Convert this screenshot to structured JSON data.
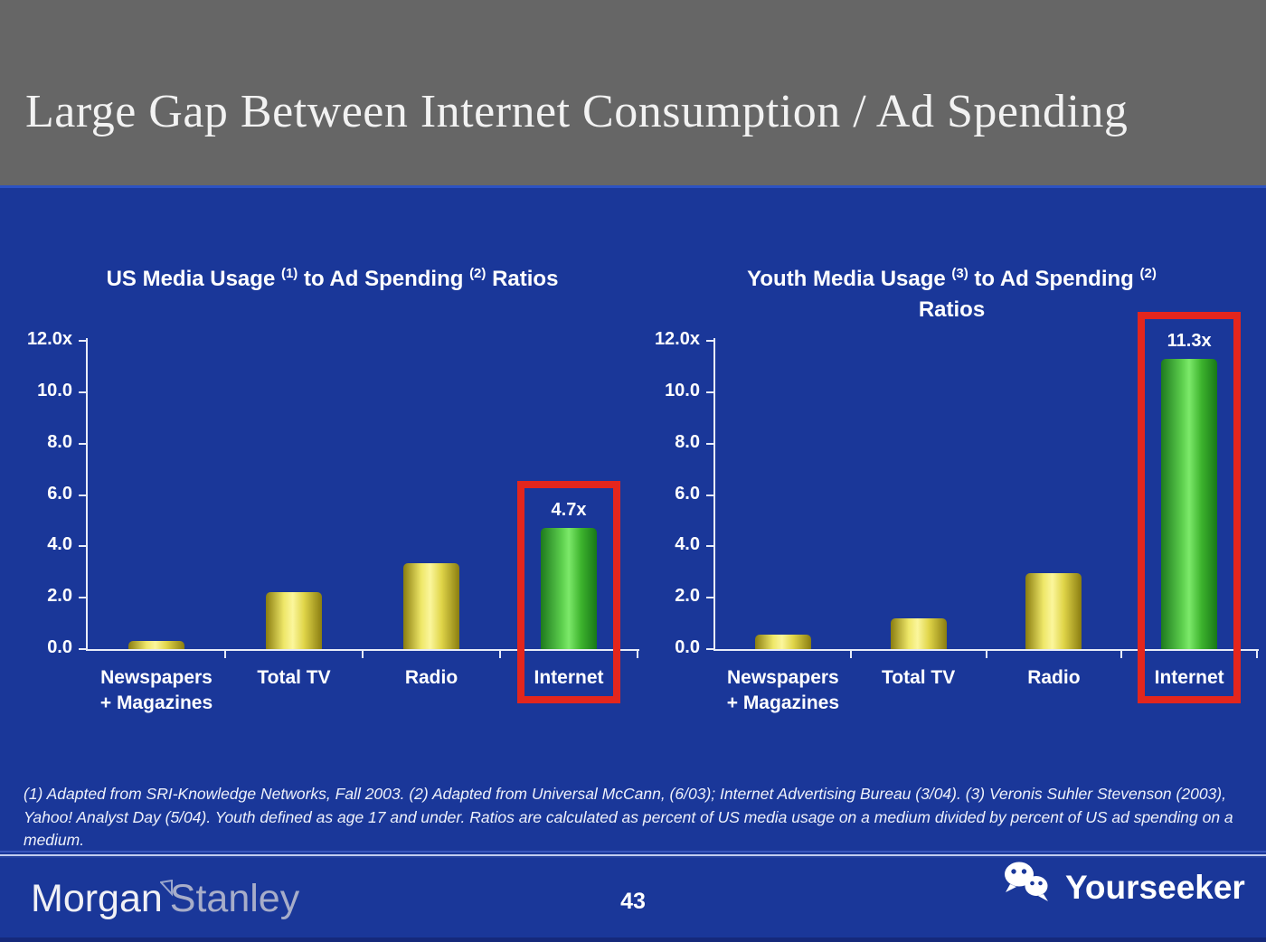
{
  "header": {
    "title": "Large Gap Between Internet Consumption / Ad Spending"
  },
  "footnote": {
    "text": "(1) Adapted from SRI-Knowledge Networks, Fall 2003.  (2) Adapted from Universal McCann, (6/03); Internet Advertising Bureau (3/04). (3) Veronis Suhler Stevenson (2003), Yahoo! Analyst Day (5/04).  Youth defined as age 17 and under.  Ratios are calculated as percent of US media usage on a medium divided by percent of US ad spending on a medium."
  },
  "footer": {
    "page_number": "43",
    "brand_morgan": "Morgan",
    "brand_stanley": "Stanley",
    "watermark": "Yourseeker"
  },
  "colors": {
    "background_blue": "#1a3799",
    "header_gray": "#666666",
    "bar_yellow": "#e8df4e",
    "bar_green": "#52c943",
    "highlight_red": "#e3261d",
    "axis_white": "#e8ecf8",
    "text_white": "#ffffff"
  },
  "chart_data": [
    {
      "type": "bar",
      "title": "US Media Usage (1) to Ad Spending (2) Ratios",
      "title_segments": [
        {
          "text": "US Media Usage "
        },
        {
          "sup": "(1)"
        },
        {
          "text": " to Ad Spending "
        },
        {
          "sup": "(2)"
        },
        {
          "text": " Ratios"
        }
      ],
      "categories": [
        "Newspapers\n+ Magazines",
        "Total TV",
        "Radio",
        "Internet"
      ],
      "values": [
        0.3,
        2.2,
        3.35,
        4.7
      ],
      "bar_colors": [
        "yellow",
        "yellow",
        "yellow",
        "green"
      ],
      "highlight_index": 3,
      "highlight_label": "4.7x",
      "xlabel": "",
      "ylabel": "",
      "ylim": [
        0,
        12
      ],
      "yticks": [
        {
          "label": "12.0x",
          "value": 12
        },
        {
          "label": "10.0",
          "value": 10
        },
        {
          "label": "8.0",
          "value": 8
        },
        {
          "label": "6.0",
          "value": 6
        },
        {
          "label": "4.0",
          "value": 4
        },
        {
          "label": "2.0",
          "value": 2
        },
        {
          "label": "0.0",
          "value": 0
        }
      ],
      "grid": false,
      "legend": "none"
    },
    {
      "type": "bar",
      "title": "Youth Media Usage (3) to Ad Spending (2) Ratios",
      "title_segments": [
        {
          "text": "Youth Media Usage "
        },
        {
          "sup": "(3)"
        },
        {
          "text": " to Ad Spending "
        },
        {
          "sup": "(2)"
        },
        {
          "br": true
        },
        {
          "text": "Ratios"
        }
      ],
      "categories": [
        "Newspapers\n+ Magazines",
        "Total TV",
        "Radio",
        "Internet"
      ],
      "values": [
        0.55,
        1.2,
        2.95,
        11.3
      ],
      "bar_colors": [
        "yellow",
        "yellow",
        "yellow",
        "green"
      ],
      "highlight_index": 3,
      "highlight_label": "11.3x",
      "xlabel": "",
      "ylabel": "",
      "ylim": [
        0,
        12
      ],
      "yticks": [
        {
          "label": "12.0x",
          "value": 12
        },
        {
          "label": "10.0",
          "value": 10
        },
        {
          "label": "8.0",
          "value": 8
        },
        {
          "label": "6.0",
          "value": 6
        },
        {
          "label": "4.0",
          "value": 4
        },
        {
          "label": "2.0",
          "value": 2
        },
        {
          "label": "0.0",
          "value": 0
        }
      ],
      "grid": false,
      "legend": "none"
    }
  ]
}
